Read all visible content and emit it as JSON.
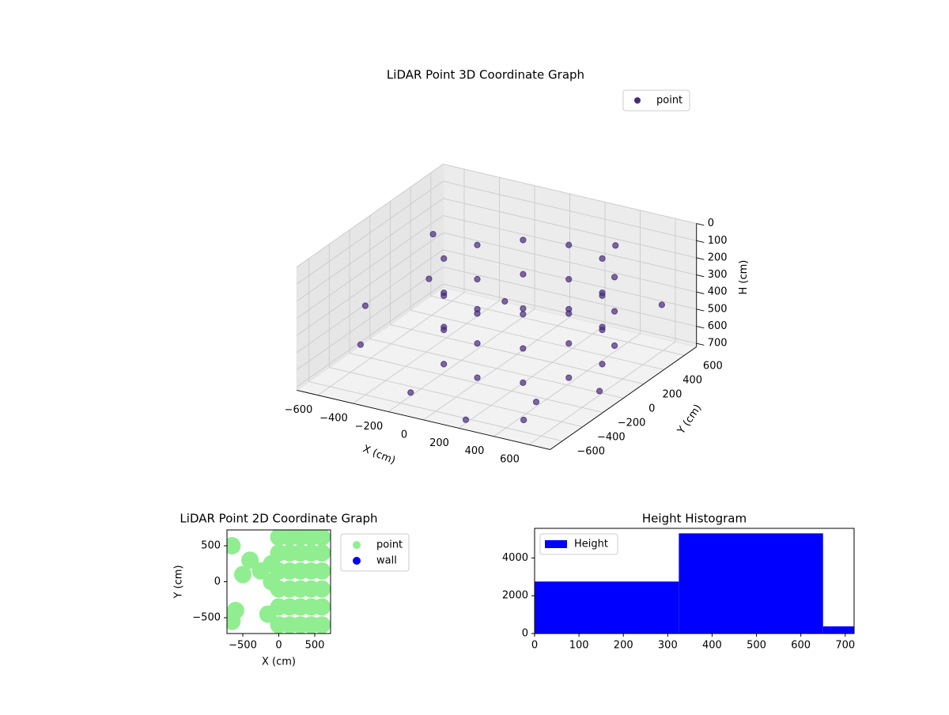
{
  "chart_data": [
    {
      "type": "scatter3d",
      "title": "LiDAR Point 3D Coordinate Graph",
      "xlabel": "X (cm)",
      "ylabel": "Y (cm)",
      "zlabel": "H (cm)",
      "xlim": [
        -720,
        720
      ],
      "ylim": [
        -720,
        720
      ],
      "zlim": [
        720,
        0
      ],
      "xticks": [
        {
          "value": -600,
          "label": "−600"
        },
        {
          "value": -400,
          "label": "−400"
        },
        {
          "value": -200,
          "label": "−200"
        },
        0,
        200,
        400,
        600
      ],
      "yticks": [
        {
          "value": -600,
          "label": "−600"
        },
        {
          "value": -400,
          "label": "−400"
        },
        {
          "value": -200,
          "label": "−200"
        },
        0,
        200,
        400,
        600
      ],
      "zticks": [
        0,
        100,
        200,
        300,
        400,
        500,
        600,
        700
      ],
      "legend": "upper right",
      "grid": true,
      "series": [
        {
          "name": "point",
          "color": "#472c7a",
          "x": [
            -75,
            150,
            375,
            540,
            600,
            540,
            375,
            150,
            -75,
            -240,
            -300,
            -75,
            150,
            375,
            540,
            600,
            540,
            375,
            150,
            -75,
            -240,
            -300,
            -75,
            150,
            375,
            540,
            600,
            540,
            375,
            150,
            -75,
            -240,
            -300,
            -650,
            -600,
            -500,
            -400,
            -300,
            200,
            500,
            650,
            700,
            600,
            -200,
            300
          ],
          "y": [
            -390,
            -450,
            -390,
            -225,
            0,
            225,
            390,
            450,
            390,
            225,
            0,
            -390,
            -450,
            -390,
            -225,
            0,
            225,
            390,
            450,
            390,
            225,
            0,
            -390,
            -450,
            -390,
            -225,
            0,
            225,
            390,
            450,
            390,
            225,
            0,
            500,
            -300,
            200,
            -600,
            600,
            -650,
            -600,
            500,
            -200,
            -650,
            -500,
            650
          ],
          "z": [
            150,
            150,
            150,
            150,
            150,
            150,
            150,
            150,
            150,
            150,
            150,
            350,
            350,
            350,
            350,
            350,
            350,
            350,
            350,
            350,
            350,
            350,
            550,
            550,
            550,
            550,
            550,
            550,
            550,
            550,
            550,
            550,
            550,
            300,
            600,
            400,
            200,
            650,
            700,
            650,
            400,
            600,
            500,
            700,
            200
          ]
        }
      ]
    },
    {
      "type": "scatter",
      "title": "LiDAR Point 2D Coordinate Graph",
      "xlabel": "X (cm)",
      "ylabel": "Y (cm)",
      "xlim": [
        -720,
        720
      ],
      "ylim": [
        -720,
        720
      ],
      "xticks": [
        {
          "value": -500,
          "label": "−500"
        },
        0,
        500
      ],
      "yticks": [
        {
          "value": -500,
          "label": "−500"
        },
        0,
        500
      ],
      "legend": "outside upper right",
      "series": [
        {
          "name": "point",
          "color": "#90ee90",
          "x": [
            0,
            150,
            300,
            450,
            600,
            0,
            150,
            300,
            450,
            600,
            0,
            150,
            300,
            450,
            600,
            0,
            150,
            300,
            450,
            600,
            0,
            150,
            300,
            450,
            600,
            0,
            150,
            300,
            450,
            600,
            -100,
            -150,
            -650,
            -600,
            -400,
            -500,
            -250,
            -650,
            -100
          ],
          "y": [
            -600,
            -600,
            -600,
            -600,
            -600,
            -350,
            -350,
            -350,
            -350,
            -350,
            -100,
            -100,
            -100,
            -100,
            -100,
            150,
            150,
            150,
            150,
            150,
            400,
            400,
            400,
            400,
            400,
            620,
            620,
            620,
            620,
            620,
            250,
            -450,
            500,
            -400,
            300,
            100,
            150,
            -550,
            0
          ]
        },
        {
          "name": "wall",
          "color": "#0000ff",
          "x": [],
          "y": []
        }
      ]
    },
    {
      "type": "histogram",
      "title": "Height Histogram",
      "name": "Height",
      "color": "#0000ff",
      "bins": [
        0,
        325,
        650,
        720
      ],
      "counts": [
        2750,
        5300,
        380
      ],
      "xlim": [
        0,
        720
      ],
      "ylim": [
        0,
        5565
      ],
      "xticks": [
        0,
        100,
        200,
        300,
        400,
        500,
        600,
        700
      ],
      "yticks": [
        0,
        2000,
        4000
      ],
      "legend": "upper left"
    }
  ]
}
